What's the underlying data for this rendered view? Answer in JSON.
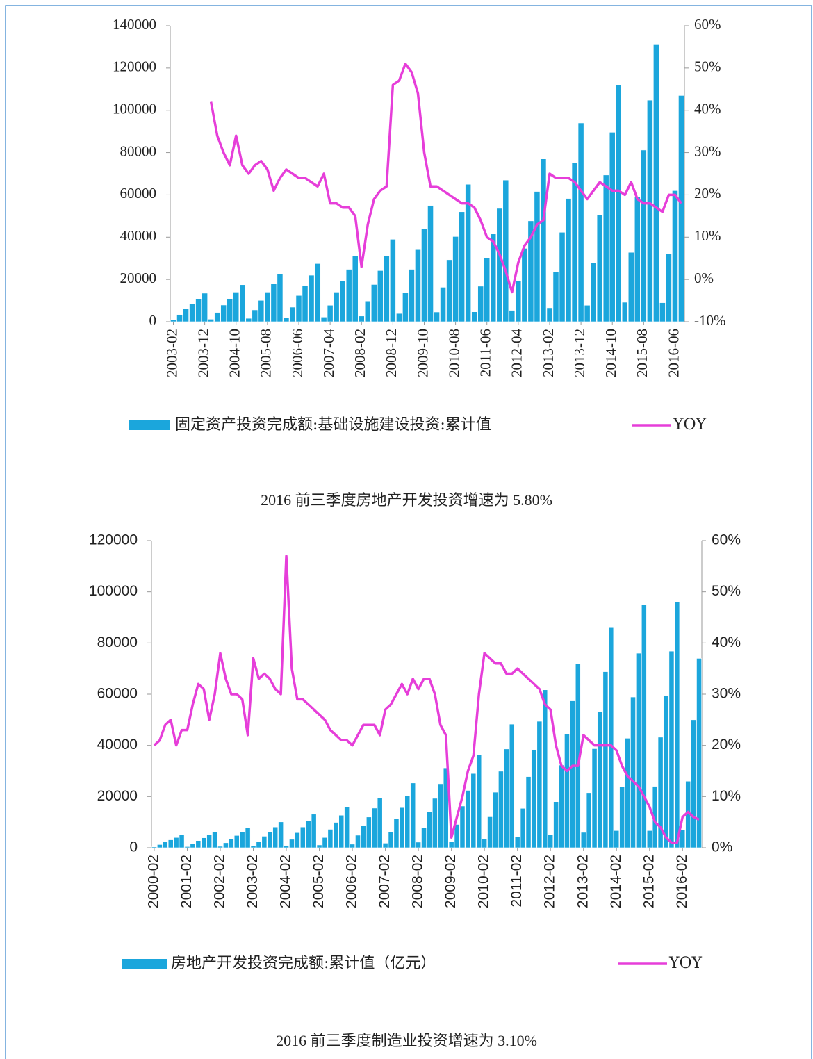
{
  "chart_data": [
    {
      "type": "bar_line",
      "categories": [
        "2003-02",
        null,
        null,
        null,
        null,
        "2003-12",
        null,
        null,
        null,
        null,
        "2004-10",
        null,
        null,
        null,
        null,
        "2005-08",
        null,
        null,
        null,
        null,
        "2006-06",
        null,
        null,
        null,
        null,
        "2007-04",
        null,
        null,
        null,
        null,
        "2008-02",
        null,
        null,
        null,
        null,
        "2008-12",
        null,
        null,
        null,
        null,
        "2009-10",
        null,
        null,
        null,
        null,
        "2010-08",
        null,
        null,
        null,
        null,
        "2011-06",
        null,
        null,
        null,
        null,
        "2012-04",
        null,
        null,
        null,
        null,
        "2013-02",
        null,
        null,
        null,
        null,
        "2013-12",
        null,
        null,
        null,
        null,
        "2014-10",
        null,
        null,
        null,
        null,
        "2015-08",
        null,
        null,
        null,
        null,
        "2016-06",
        null
      ],
      "series": [
        {
          "name": "固定资产投资完成额:基础设施建设投资:累计值",
          "type": "bar",
          "color": "#1ba6dc",
          "values": [
            950,
            3400,
            6100,
            8400,
            10800,
            13500,
            1200,
            4400,
            7900,
            10900,
            14000,
            17500,
            1600,
            5600,
            10100,
            14000,
            18000,
            22500,
            1900,
            6900,
            12400,
            17100,
            22000,
            27500,
            2200,
            7800,
            14000,
            19200,
            24800,
            31000,
            2700,
            9800,
            17600,
            24200,
            31200,
            39000,
            3900,
            13800,
            24800,
            34100,
            44000,
            55000,
            4600,
            16300,
            29300,
            40300,
            52000,
            65000,
            4700,
            16800,
            30200,
            41500,
            53600,
            67000,
            5400,
            19300,
            34700,
            47700,
            61600,
            77000,
            6600,
            23500,
            42300,
            58300,
            75200,
            94000,
            7800,
            28000,
            50400,
            69400,
            89600,
            112000,
            9200,
            32800,
            59000,
            81200,
            104800,
            131000,
            9000,
            32000,
            62000,
            107000
          ]
        },
        {
          "name": "YOY",
          "type": "line",
          "axis": "y2",
          "color": "#e63ed9",
          "values": [
            null,
            null,
            null,
            null,
            null,
            null,
            42,
            34,
            30,
            27,
            34,
            27,
            25,
            27,
            28,
            26,
            21,
            24,
            26,
            25,
            24,
            24,
            23,
            22,
            25,
            18,
            18,
            17,
            17,
            15,
            3,
            13,
            19,
            21,
            22,
            46,
            47,
            51,
            49,
            44,
            30,
            22,
            22,
            21,
            20,
            19,
            18,
            18,
            17,
            14,
            10,
            9,
            6,
            2,
            -3,
            4,
            8,
            10,
            13,
            14,
            25,
            24,
            24,
            24,
            23,
            21,
            19,
            21,
            23,
            22,
            21,
            21,
            20,
            23,
            19,
            18,
            18,
            17,
            16,
            20,
            20,
            18
          ]
        }
      ],
      "ylim": [
        0,
        140000
      ],
      "yticks": [
        0,
        20000,
        40000,
        60000,
        80000,
        100000,
        120000,
        140000
      ],
      "y2lim": [
        -10,
        60
      ],
      "y2ticks": [
        {
          "value": -10,
          "label": "-10%"
        },
        {
          "value": 0,
          "label": "0%"
        },
        {
          "value": 10,
          "label": "10%"
        },
        {
          "value": 20,
          "label": "20%"
        },
        {
          "value": 30,
          "label": "30%"
        },
        {
          "value": 40,
          "label": "40%"
        },
        {
          "value": 50,
          "label": "50%"
        },
        {
          "value": 60,
          "label": "60%"
        }
      ],
      "legend": "bottom",
      "caption": "2016 前三季度房地产开发投资增速为 5.80%"
    },
    {
      "type": "bar_line",
      "categories": [
        "2000-02",
        null,
        null,
        null,
        null,
        null,
        "2001-02",
        null,
        null,
        null,
        null,
        null,
        "2002-02",
        null,
        null,
        null,
        null,
        null,
        "2003-02",
        null,
        null,
        null,
        null,
        null,
        "2004-02",
        null,
        null,
        null,
        null,
        null,
        "2005-02",
        null,
        null,
        null,
        null,
        null,
        "2006-02",
        null,
        null,
        null,
        null,
        null,
        "2007-02",
        null,
        null,
        null,
        null,
        null,
        "2008-02",
        null,
        null,
        null,
        null,
        null,
        "2009-02",
        null,
        null,
        null,
        null,
        null,
        "2010-02",
        null,
        null,
        null,
        null,
        null,
        "2011-02",
        null,
        null,
        null,
        null,
        null,
        "2012-02",
        null,
        null,
        null,
        null,
        null,
        "2013-02",
        null,
        null,
        null,
        null,
        null,
        "2014-02",
        null,
        null,
        null,
        null,
        null,
        "2015-02",
        null,
        null,
        null,
        null,
        null,
        "2016-02",
        null,
        null,
        null
      ],
      "series": [
        {
          "name": "房地产开发投资完成额:累计值（亿元）",
          "type": "bar",
          "color": "#1ba6dc",
          "values": [
            350,
            1250,
            2250,
            3100,
            4000,
            5000,
            440,
            1600,
            2800,
            3900,
            5000,
            6300,
            550,
            1950,
            3500,
            4800,
            6200,
            7800,
            700,
            2500,
            4500,
            6300,
            8100,
            10100,
            900,
            3300,
            5900,
            8100,
            10500,
            13100,
            1100,
            4000,
            7200,
            9900,
            12700,
            15900,
            1400,
            4900,
            8700,
            12000,
            15500,
            19400,
            1800,
            6300,
            11400,
            15700,
            20200,
            25300,
            2200,
            7800,
            14000,
            19300,
            25000,
            31200,
            2500,
            9100,
            16300,
            22400,
            29000,
            36200,
            3400,
            12100,
            21700,
            29900,
            38600,
            48300,
            4300,
            15400,
            27800,
            38300,
            49400,
            61700,
            5000,
            18000,
            32300,
            44500,
            57400,
            71800,
            6000,
            21500,
            38700,
            53300,
            68800,
            86000,
            6700,
            23800,
            42800,
            58900,
            76000,
            95000,
            6700,
            24000,
            43200,
            59500,
            76800,
            96000,
            7000,
            26000,
            50000,
            74000
          ]
        },
        {
          "name": "YOY",
          "type": "line",
          "axis": "y2",
          "color": "#e63ed9",
          "values": [
            20,
            21,
            24,
            25,
            20,
            23,
            23,
            28,
            32,
            31,
            25,
            30,
            38,
            33,
            30,
            30,
            29,
            22,
            37,
            33,
            34,
            33,
            31,
            30,
            57,
            35,
            29,
            29,
            28,
            27,
            26,
            25,
            23,
            22,
            21,
            21,
            20,
            22,
            24,
            24,
            24,
            22,
            27,
            28,
            30,
            32,
            30,
            33,
            31,
            33,
            33,
            30,
            24,
            22,
            2,
            6,
            10,
            15,
            18,
            30,
            38,
            37,
            36,
            36,
            34,
            34,
            35,
            34,
            33,
            32,
            31,
            28,
            27,
            20,
            16,
            15,
            16,
            16,
            22,
            21,
            20,
            20,
            20,
            20,
            19,
            16,
            14,
            13,
            12,
            10,
            8,
            5,
            4,
            2,
            1,
            1,
            6,
            7,
            6,
            5.5
          ]
        }
      ],
      "ylim": [
        0,
        120000
      ],
      "yticks": [
        0,
        20000,
        40000,
        60000,
        80000,
        100000,
        120000
      ],
      "y2lim": [
        0,
        60
      ],
      "y2ticks": [
        {
          "value": 0,
          "label": "0%"
        },
        {
          "value": 10,
          "label": "10%"
        },
        {
          "value": 20,
          "label": "20%"
        },
        {
          "value": 30,
          "label": "30%"
        },
        {
          "value": 40,
          "label": "40%"
        },
        {
          "value": 50,
          "label": "50%"
        },
        {
          "value": 60,
          "label": "60%"
        }
      ],
      "legend": "bottom",
      "caption": "2016 前三季度制造业投资增速为 3.10%"
    }
  ]
}
